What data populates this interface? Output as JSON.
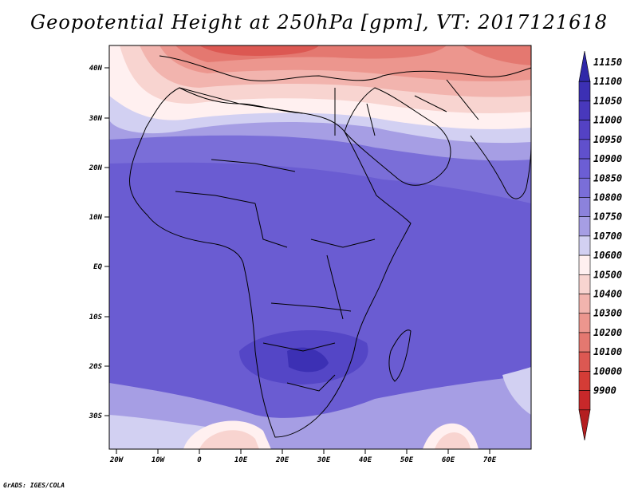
{
  "title": "Geopotential Height at 250hPa [gpm], VT: 2017121618",
  "credit": "GrADS: IGES/COLA",
  "map": {
    "lat_labels": [
      "40N",
      "30N",
      "20N",
      "10N",
      "EQ",
      "10S",
      "20S",
      "30S"
    ],
    "lon_labels": [
      "20W",
      "10W",
      "0",
      "10E",
      "20E",
      "30E",
      "40E",
      "50E",
      "60E",
      "70E"
    ]
  },
  "colorbar": {
    "levels": [
      "11150",
      "11100",
      "11050",
      "11000",
      "10950",
      "10900",
      "10850",
      "10800",
      "10750",
      "10700",
      "10600",
      "10500",
      "10400",
      "10300",
      "10200",
      "10100",
      "10000",
      "9900"
    ],
    "colors": [
      "#3028a8",
      "#3c30b4",
      "#4838bc",
      "#5442c4",
      "#6050cc",
      "#6c5ed4",
      "#7a6ed8",
      "#8c82dc",
      "#a69ee4",
      "#d2d0f2",
      "#fff0f0",
      "#f8d4d0",
      "#f2b4ae",
      "#ec968e",
      "#e47870",
      "#dc5852",
      "#d43c36",
      "#c8282a",
      "#b41e20"
    ]
  }
}
